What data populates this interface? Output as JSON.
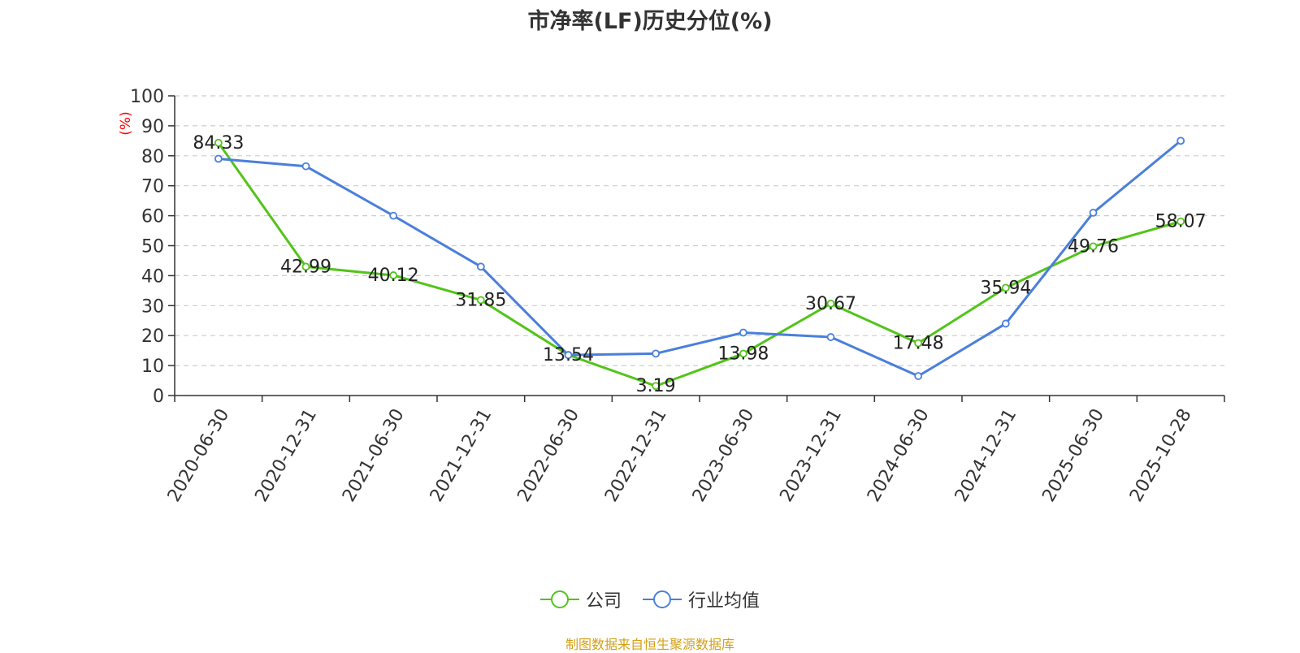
{
  "chart_data": {
    "type": "line",
    "title": "市净率(LF)历史分位(%)",
    "ylabel": "(%)",
    "xlabel": "",
    "ylim": [
      0,
      100
    ],
    "yticks": [
      0,
      10,
      20,
      30,
      40,
      50,
      60,
      70,
      80,
      90,
      100
    ],
    "grid": true,
    "legend_position": "bottom",
    "categories": [
      "2020-06-30",
      "2020-12-31",
      "2021-06-30",
      "2021-12-31",
      "2022-06-30",
      "2022-12-31",
      "2023-06-30",
      "2023-12-31",
      "2024-06-30",
      "2024-12-31",
      "2025-06-30",
      "2025-10-28"
    ],
    "series": [
      {
        "name": "公司",
        "color": "#52c41a",
        "values": [
          84.33,
          42.99,
          40.12,
          31.85,
          13.54,
          3.19,
          13.98,
          30.67,
          17.48,
          35.94,
          49.76,
          58.07
        ],
        "labels": [
          "84.33",
          "42.99",
          "40.12",
          "31.85",
          "13.54",
          "3.19",
          "13.98",
          "30.67",
          "17.48",
          "35.94",
          "49.76",
          "58.07"
        ]
      },
      {
        "name": "行业均值",
        "color": "#4a7fdc",
        "values": [
          79,
          76.5,
          60,
          43,
          13.5,
          14,
          21,
          19.5,
          6.5,
          24,
          61,
          85
        ]
      }
    ]
  },
  "source_note": "制图数据来自恒生聚源数据库"
}
